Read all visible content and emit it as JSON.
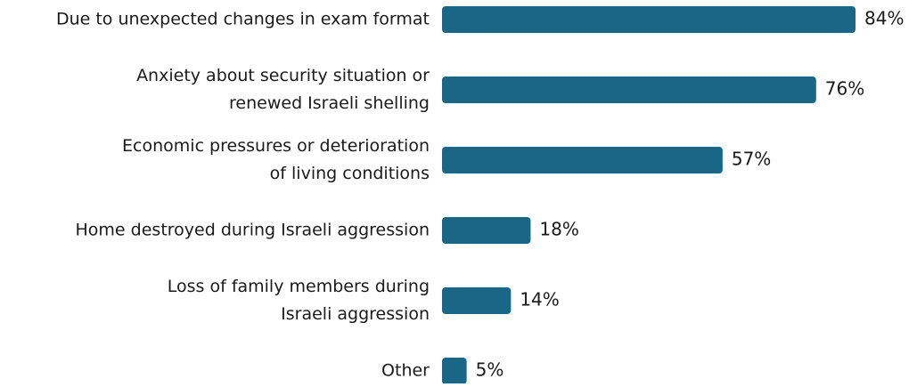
{
  "chart_data": {
    "type": "bar",
    "orientation": "horizontal",
    "categories": [
      [
        "Due to unexpected changes in exam format"
      ],
      [
        "Anxiety about security situation or",
        "renewed Israeli shelling"
      ],
      [
        "Economic pressures or deterioration",
        "of living conditions"
      ],
      [
        "Home destroyed during Israeli aggression"
      ],
      [
        "Loss of family members during",
        "Israeli aggression"
      ],
      [
        "Other"
      ]
    ],
    "values": [
      84,
      76,
      57,
      18,
      14,
      5
    ],
    "value_labels": [
      "84%",
      "76%",
      "57%",
      "18%",
      "14%",
      "5%"
    ],
    "color": "#196686"
  }
}
